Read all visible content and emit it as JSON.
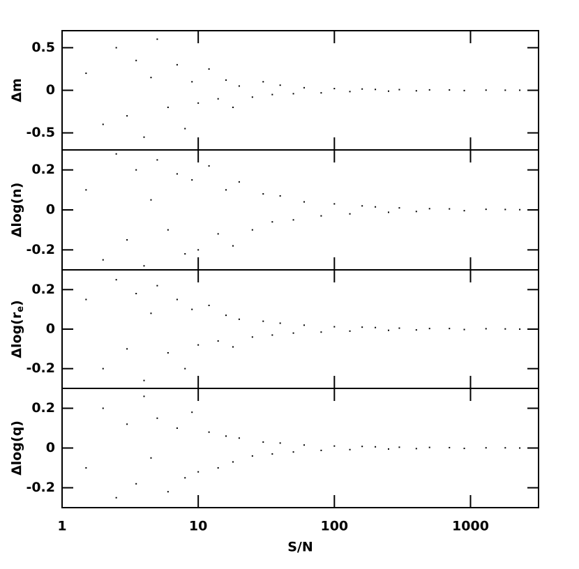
{
  "chart_data": [
    {
      "type": "scatter",
      "ylabel": [
        "Δm"
      ],
      "xscale": "log",
      "xlim": [
        1,
        3160
      ],
      "xticks": [
        1,
        10,
        100,
        1000
      ],
      "ylim": [
        -0.7,
        0.7
      ],
      "yticks": [
        -0.5,
        0,
        0.5
      ],
      "color": "#000000",
      "x": [
        1.5,
        2,
        2.5,
        3,
        3.5,
        4,
        4.5,
        5,
        6,
        7,
        8,
        9,
        10,
        12,
        14,
        16,
        18,
        20,
        25,
        30,
        35,
        40,
        50,
        60,
        80,
        100,
        130,
        160,
        200,
        250,
        300,
        400,
        500,
        700,
        900,
        1300,
        1800,
        2300
      ],
      "y": [
        0.2,
        -0.4,
        0.5,
        -0.3,
        0.35,
        -0.55,
        0.15,
        0.6,
        -0.2,
        0.3,
        -0.45,
        0.1,
        -0.15,
        0.25,
        -0.1,
        0.12,
        -0.2,
        0.05,
        -0.08,
        0.1,
        -0.05,
        0.06,
        -0.04,
        0.03,
        -0.03,
        0.02,
        -0.015,
        0.015,
        0.01,
        -0.01,
        0.008,
        -0.006,
        0.005,
        0.004,
        -0.003,
        0.002,
        0.001,
        0.001
      ]
    },
    {
      "type": "scatter",
      "ylabel": [
        "Δlog(n)"
      ],
      "xscale": "log",
      "xlim": [
        1,
        3160
      ],
      "xticks": [
        1,
        10,
        100,
        1000
      ],
      "ylim": [
        -0.3,
        0.3
      ],
      "yticks": [
        -0.2,
        0,
        0.2
      ],
      "color": "#000000",
      "x": [
        1.5,
        2,
        2.5,
        3,
        3.5,
        4,
        4.5,
        5,
        6,
        7,
        8,
        9,
        10,
        12,
        14,
        16,
        18,
        20,
        25,
        30,
        35,
        40,
        50,
        60,
        80,
        100,
        130,
        160,
        200,
        250,
        300,
        400,
        500,
        700,
        900,
        1300,
        1800,
        2300
      ],
      "y": [
        0.1,
        -0.25,
        0.28,
        -0.15,
        0.2,
        -0.28,
        0.05,
        0.25,
        -0.1,
        0.18,
        -0.22,
        0.15,
        -0.2,
        0.22,
        -0.12,
        0.1,
        -0.18,
        0.14,
        -0.1,
        0.08,
        -0.06,
        0.07,
        -0.05,
        0.04,
        -0.03,
        0.03,
        -0.02,
        0.02,
        0.015,
        -0.012,
        0.01,
        -0.008,
        0.006,
        0.005,
        -0.004,
        0.003,
        0.002,
        0.001
      ]
    },
    {
      "type": "scatter",
      "ylabel": [
        "Δlog(r",
        "e",
        ")"
      ],
      "xscale": "log",
      "xlim": [
        1,
        3160
      ],
      "xticks": [
        1,
        10,
        100,
        1000
      ],
      "ylim": [
        -0.3,
        0.3
      ],
      "yticks": [
        -0.2,
        0,
        0.2
      ],
      "color": "#000000",
      "x": [
        1.5,
        2,
        2.5,
        3,
        3.5,
        4,
        4.5,
        5,
        6,
        7,
        8,
        9,
        10,
        12,
        14,
        16,
        18,
        20,
        25,
        30,
        35,
        40,
        50,
        60,
        80,
        100,
        130,
        160,
        200,
        250,
        300,
        400,
        500,
        700,
        900,
        1300,
        1800,
        2300
      ],
      "y": [
        0.15,
        -0.2,
        0.25,
        -0.1,
        0.18,
        -0.26,
        0.08,
        0.22,
        -0.12,
        0.15,
        -0.2,
        0.1,
        -0.08,
        0.12,
        -0.06,
        0.07,
        -0.09,
        0.05,
        -0.04,
        0.04,
        -0.03,
        0.03,
        -0.02,
        0.02,
        -0.015,
        0.012,
        -0.01,
        0.01,
        0.008,
        -0.006,
        0.005,
        -0.004,
        0.003,
        0.003,
        -0.002,
        0.002,
        0.001,
        0
      ]
    },
    {
      "type": "scatter",
      "ylabel": [
        "Δlog(q)"
      ],
      "xlabel": "S/N",
      "xtick_labels": true,
      "xscale": "log",
      "xlim": [
        1,
        3160
      ],
      "xticks": [
        1,
        10,
        100,
        1000
      ],
      "ylim": [
        -0.3,
        0.3
      ],
      "yticks": [
        -0.2,
        0,
        0.2
      ],
      "color": "#000000",
      "x": [
        1.5,
        2,
        2.5,
        3,
        3.5,
        4,
        4.5,
        5,
        6,
        7,
        8,
        9,
        10,
        12,
        14,
        16,
        18,
        20,
        25,
        30,
        35,
        40,
        50,
        60,
        80,
        100,
        130,
        160,
        200,
        250,
        300,
        400,
        500,
        700,
        900,
        1300,
        1800,
        2300
      ],
      "y": [
        -0.1,
        0.2,
        -0.25,
        0.12,
        -0.18,
        0.26,
        -0.05,
        0.15,
        -0.22,
        0.1,
        -0.15,
        0.18,
        -0.12,
        0.08,
        -0.1,
        0.06,
        -0.07,
        0.05,
        -0.04,
        0.03,
        -0.03,
        0.025,
        -0.02,
        0.015,
        -0.012,
        0.01,
        -0.008,
        0.008,
        0.006,
        -0.005,
        0.004,
        -0.003,
        0.003,
        0.002,
        -0.002,
        0.001,
        0.001,
        0
      ]
    }
  ]
}
